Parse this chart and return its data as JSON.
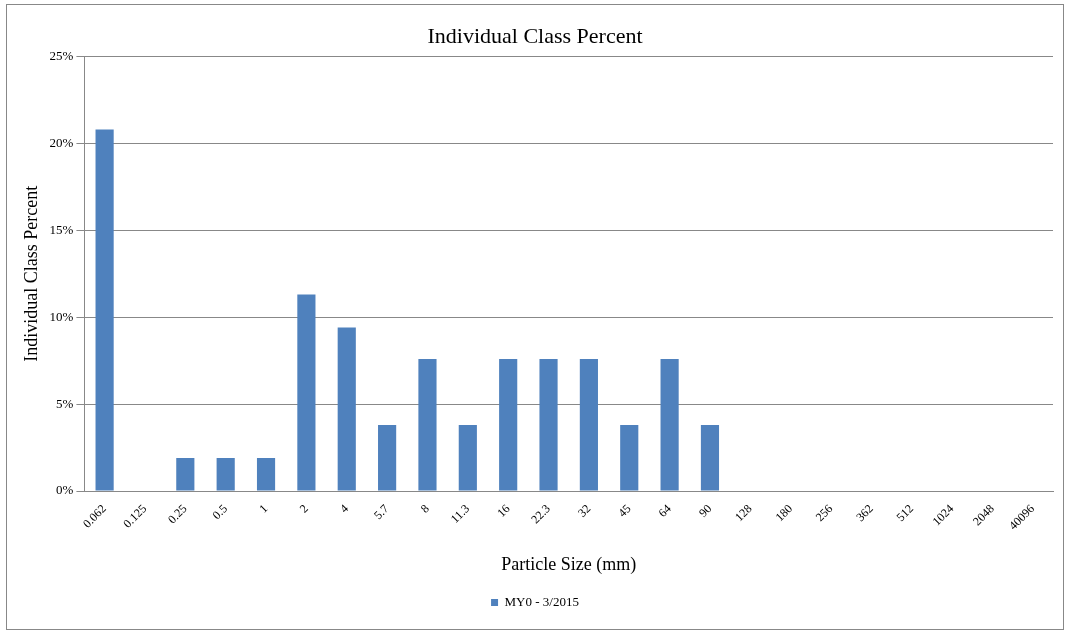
{
  "chart_data": {
    "type": "bar",
    "title": "Individual Class Percent",
    "xlabel": "Particle Size (mm)",
    "ylabel": "Individual Class Percent",
    "categories": [
      "0.062",
      "0.125",
      "0.25",
      "0.5",
      "1",
      "2",
      "4",
      "5.7",
      "8",
      "11.3",
      "16",
      "22.3",
      "32",
      "45",
      "64",
      "90",
      "128",
      "180",
      "256",
      "362",
      "512",
      "1024",
      "2048",
      "40096"
    ],
    "series": [
      {
        "name": "MY0 - 3/2015",
        "color": "#4f81bd",
        "values": [
          20.8,
          0,
          1.9,
          1.9,
          1.9,
          11.3,
          9.4,
          3.8,
          7.6,
          3.8,
          7.6,
          7.6,
          7.6,
          3.8,
          7.6,
          3.8,
          0,
          0,
          0,
          0,
          0,
          0,
          0,
          0
        ]
      }
    ],
    "ylim": [
      0,
      25
    ],
    "yticks": [
      {
        "value": 0,
        "label": "0%"
      },
      {
        "value": 5,
        "label": "5%"
      },
      {
        "value": 10,
        "label": "10%"
      },
      {
        "value": 15,
        "label": "15%"
      },
      {
        "value": 20,
        "label": "20%"
      },
      {
        "value": 25,
        "label": "25%"
      }
    ],
    "grid": "y",
    "legend": "bottom"
  }
}
